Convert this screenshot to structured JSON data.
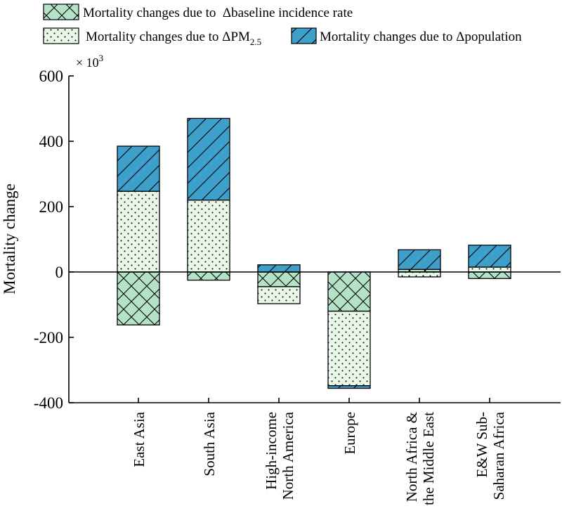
{
  "chart_data": {
    "type": "bar",
    "stacked": true,
    "categories": [
      "East Asia",
      "South Asia",
      "High-income North America",
      "Europe",
      "North Africa & the Middle East",
      "E&W Sub-Saharan Africa"
    ],
    "category_lines": [
      [
        "East Asia"
      ],
      [
        "South Asia"
      ],
      [
        "High-income",
        "North America"
      ],
      [
        "Europe"
      ],
      [
        "North Africa &",
        "the Middle East"
      ],
      [
        "E&W Sub-",
        "Saharan Africa"
      ]
    ],
    "series": [
      {
        "name": "Mortality changes due to  Δbaseline incidence rate",
        "pattern": "crosshatch",
        "values": [
          -162,
          -25,
          -45,
          -120,
          8,
          -20
        ]
      },
      {
        "name": "Mortality changes due to ΔPM2.5",
        "name_parts": [
          "Mortality changes due to ΔPM",
          "2.5"
        ],
        "pattern": "dots",
        "values": [
          247,
          220,
          -52,
          -228,
          -15,
          15
        ]
      },
      {
        "name": "Mortality changes due to Δpopulation",
        "pattern": "diagonal",
        "values": [
          138,
          250,
          22,
          -8,
          60,
          67
        ]
      }
    ],
    "ylabel": "Mortality change",
    "y_multiplier": "× 10",
    "y_multiplier_exp": "3",
    "ylim": [
      -400,
      600
    ],
    "yticks": [
      -400,
      -200,
      0,
      200,
      400,
      600
    ],
    "legend": "top",
    "colors": {
      "baseline_fill": "#b3e2c6",
      "pm_fill": "#e8f7e8",
      "population_fill": "#3f9fcb",
      "stroke": "#000000"
    }
  }
}
